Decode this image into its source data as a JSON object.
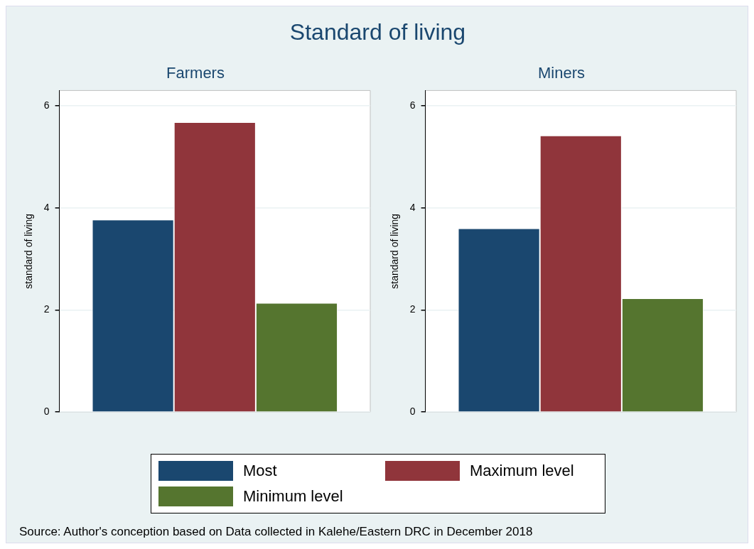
{
  "chart_data": [
    {
      "type": "bar",
      "title": "Farmers",
      "ylabel": "standard of living",
      "categories": [
        null
      ],
      "ylim": [
        0,
        6.3
      ],
      "yticks": [
        0,
        2,
        4,
        6
      ],
      "grid": "y",
      "legend": "bottom",
      "series": [
        {
          "name": "Most",
          "color": "#1a476f",
          "values": [
            3.77
          ]
        },
        {
          "name": "Maximum level",
          "color": "#90353b",
          "values": [
            5.68
          ]
        },
        {
          "name": "Minimum level",
          "color": "#55752f",
          "values": [
            2.14
          ]
        }
      ]
    },
    {
      "type": "bar",
      "title": "Miners",
      "ylabel": "standard of living",
      "categories": [
        null
      ],
      "ylim": [
        0,
        6.3
      ],
      "yticks": [
        0,
        2,
        4,
        6
      ],
      "grid": "y",
      "series": [
        {
          "color": "#1a476f",
          "values": [
            3.6
          ]
        },
        {
          "color": "#90353b",
          "values": [
            5.42
          ]
        },
        {
          "color": "#55752f",
          "values": [
            2.23
          ]
        }
      ]
    },
    {
      "type": "other",
      "title": "Standard of living",
      "annotations": [
        "Source: Author's conception based on Data collected in Kalehe/Eastern DRC in December 2018"
      ]
    }
  ]
}
